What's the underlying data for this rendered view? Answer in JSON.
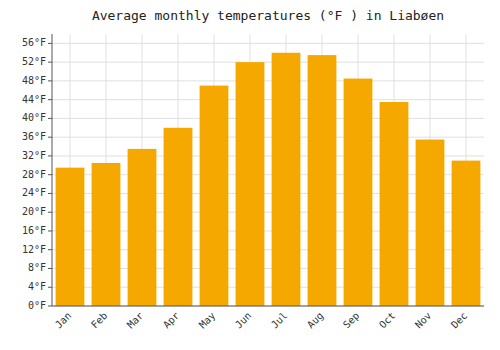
{
  "chart_data": {
    "type": "bar",
    "title": "Average monthly temperatures (°F ) in Liabøen",
    "categories": [
      "Jan",
      "Feb",
      "Mar",
      "Apr",
      "May",
      "Jun",
      "Jul",
      "Aug",
      "Sep",
      "Oct",
      "Nov",
      "Dec"
    ],
    "values": [
      29.5,
      30.5,
      33.5,
      38.0,
      47.0,
      52.0,
      54.0,
      53.5,
      48.5,
      43.5,
      35.5,
      31.0
    ],
    "color": "#F5A800",
    "ylim": [
      0,
      58
    ],
    "yticks": [
      {
        "value": 0,
        "label": "0°F"
      },
      {
        "value": 4,
        "label": "4°F"
      },
      {
        "value": 8,
        "label": "8°F"
      },
      {
        "value": 12,
        "label": "12°F"
      },
      {
        "value": 16,
        "label": "16°F"
      },
      {
        "value": 20,
        "label": "20°F"
      },
      {
        "value": 24,
        "label": "24°F"
      },
      {
        "value": 28,
        "label": "28°F"
      },
      {
        "value": 32,
        "label": "32°F"
      },
      {
        "value": 36,
        "label": "36°F"
      },
      {
        "value": 40,
        "label": "40°F"
      },
      {
        "value": 44,
        "label": "44°F"
      },
      {
        "value": 48,
        "label": "48°F"
      },
      {
        "value": 52,
        "label": "52°F"
      },
      {
        "value": 56,
        "label": "56°F"
      }
    ],
    "grid": true
  }
}
